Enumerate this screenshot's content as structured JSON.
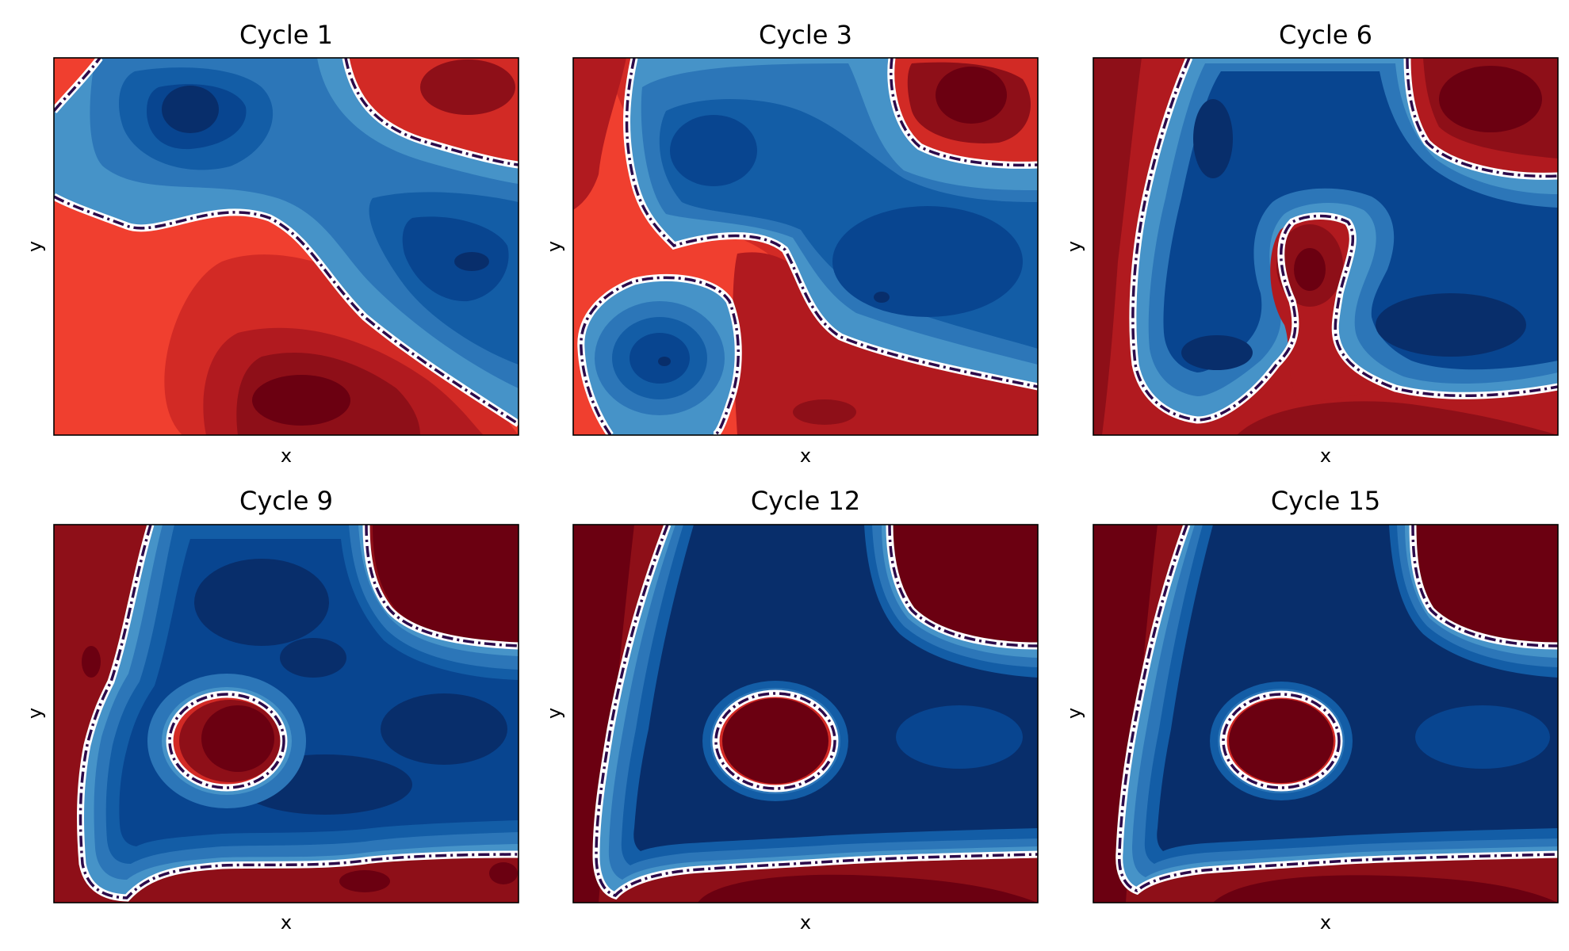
{
  "figure": {
    "layout": {
      "rows": 2,
      "cols": 3
    }
  },
  "chart_data": [
    {
      "type": "heatmap",
      "title": "Cycle 1",
      "xlabel": "x",
      "ylabel": "y",
      "ticks": "none",
      "colormap": "RdBu",
      "boundary": "dash-dot contour at zero level",
      "regions": [
        {
          "polarity": "negative",
          "shape": "diagonal band from top-left to right edge"
        },
        {
          "polarity": "positive",
          "shape": "top-right corner"
        },
        {
          "polarity": "positive",
          "shape": "lower-left area"
        }
      ]
    },
    {
      "type": "heatmap",
      "title": "Cycle 3",
      "xlabel": "x",
      "ylabel": "y",
      "ticks": "none",
      "colormap": "RdBu",
      "boundary": "dash-dot contour at zero level",
      "regions": [
        {
          "polarity": "negative",
          "shape": "large upper region"
        },
        {
          "polarity": "positive",
          "shape": "top-right corner"
        },
        {
          "polarity": "negative",
          "shape": "lower-left blob"
        },
        {
          "polarity": "positive",
          "shape": "left strip and bottom band"
        }
      ]
    },
    {
      "type": "heatmap",
      "title": "Cycle 6",
      "xlabel": "x",
      "ylabel": "y",
      "ticks": "none",
      "colormap": "RdBu",
      "boundary": "dash-dot contour at zero level",
      "regions": [
        {
          "polarity": "negative",
          "shape": "central area"
        },
        {
          "polarity": "positive",
          "shape": "top-right corner"
        },
        {
          "polarity": "positive",
          "shape": "central bulb connected to bottom"
        },
        {
          "polarity": "positive",
          "shape": "left and bottom edges"
        }
      ]
    },
    {
      "type": "heatmap",
      "title": "Cycle 9",
      "xlabel": "x",
      "ylabel": "y",
      "ticks": "none",
      "colormap": "RdBu",
      "boundary": "dash-dot contour at zero level",
      "regions": [
        {
          "polarity": "negative",
          "shape": "central area"
        },
        {
          "polarity": "positive",
          "shape": "top-right corner"
        },
        {
          "polarity": "positive",
          "shape": "circular inclusion"
        },
        {
          "polarity": "positive",
          "shape": "left and bottom edges"
        }
      ]
    },
    {
      "type": "heatmap",
      "title": "Cycle 12",
      "xlabel": "x",
      "ylabel": "y",
      "ticks": "none",
      "colormap": "RdBu",
      "boundary": "dash-dot contour at zero level",
      "regions": [
        {
          "polarity": "negative",
          "shape": "central area"
        },
        {
          "polarity": "positive",
          "shape": "top-right corner"
        },
        {
          "polarity": "positive",
          "shape": "circular inclusion"
        },
        {
          "polarity": "positive",
          "shape": "left and bottom edges"
        }
      ]
    },
    {
      "type": "heatmap",
      "title": "Cycle 15",
      "xlabel": "x",
      "ylabel": "y",
      "ticks": "none",
      "colormap": "RdBu",
      "boundary": "dash-dot contour at zero level",
      "regions": [
        {
          "polarity": "negative",
          "shape": "central area"
        },
        {
          "polarity": "positive",
          "shape": "top-right corner"
        },
        {
          "polarity": "positive",
          "shape": "circular inclusion"
        },
        {
          "polarity": "positive",
          "shape": "left and bottom edges"
        }
      ]
    }
  ],
  "colors": {
    "red_levels": [
      "#f03f2f",
      "#d22a25",
      "#b11a1f",
      "#8e0f18",
      "#6b0011"
    ],
    "blue_levels": [
      "#4693c8",
      "#2c76b8",
      "#135da6",
      "#084590",
      "#082e6b"
    ],
    "boundary_dark": "#2c0a4a",
    "boundary_light": "#ffffff",
    "frame": "#000000",
    "background": "#ffffff"
  }
}
